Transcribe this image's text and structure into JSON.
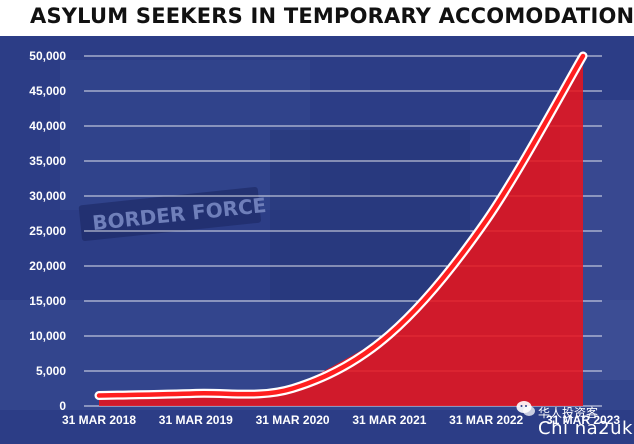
{
  "chart_data": {
    "type": "area",
    "title": "ASYLUM SEEKERS IN TEMPORARY ACCOMODATION",
    "categories": [
      "31 MAR 2018",
      "31 MAR 2019",
      "31 MAR 2020",
      "31 MAR 2021",
      "31 MAR 2022",
      "31 MAR 2023"
    ],
    "values": [
      1500,
      1800,
      2500,
      10200,
      26500,
      50000
    ],
    "yticks": [
      "50,000",
      "45,000",
      "40,000",
      "35,000",
      "30,000",
      "25,000",
      "20,000",
      "15,000",
      "10,000",
      "5,000",
      "0"
    ],
    "ylim": [
      0,
      50000
    ],
    "grid": true,
    "colors": {
      "line": "#ff1f1f",
      "area": "#e6141e",
      "background": "#2c3d86",
      "grid": "#ffffff"
    }
  },
  "watermark": {
    "text": "华人投资客",
    "site": "Chi na2uk",
    "icon": "wechat-icon"
  },
  "photo_text": "BORDER FORCE"
}
